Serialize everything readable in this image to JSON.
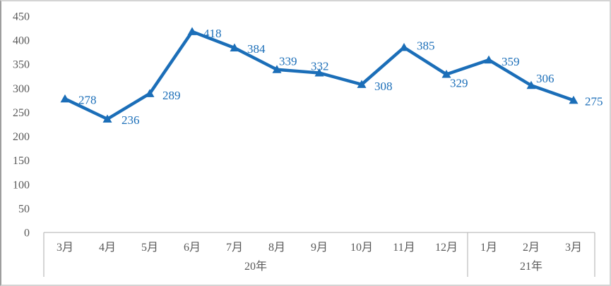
{
  "chart_data": {
    "type": "line",
    "categories": [
      "3月",
      "4月",
      "5月",
      "6月",
      "7月",
      "8月",
      "9月",
      "10月",
      "11月",
      "12月",
      "1月",
      "2月",
      "3月"
    ],
    "values": [
      278,
      236,
      289,
      418,
      384,
      339,
      332,
      308,
      385,
      329,
      359,
      306,
      275
    ],
    "data_labels": [
      "278",
      "236",
      "289",
      "418",
      "384",
      "339",
      "332",
      "308",
      "385",
      "329",
      "359",
      "306",
      "275"
    ],
    "group_labels": [
      {
        "label": "20年",
        "span": 10
      },
      {
        "label": "21年",
        "span": 3
      }
    ],
    "yticks": [
      0,
      50,
      100,
      150,
      200,
      250,
      300,
      350,
      400,
      450
    ],
    "ylim": [
      0,
      450
    ],
    "title": "",
    "xlabel": "",
    "ylabel": "",
    "grid": false,
    "legend": "none",
    "marker": "triangle-up",
    "series_color": "#1b6eb8",
    "axis_text_color": "#595959",
    "axis_line_color": "#bfbfbf"
  }
}
